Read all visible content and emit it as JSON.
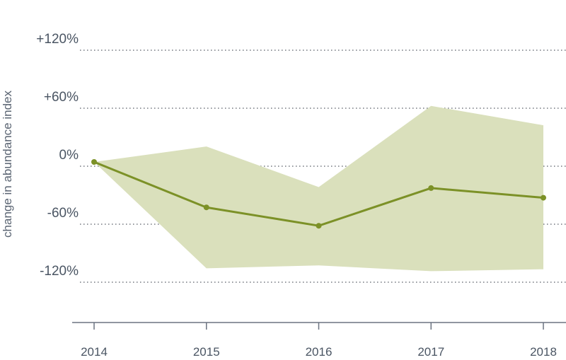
{
  "chart_data": {
    "type": "line",
    "title": "",
    "ylabel": "change in abundance index",
    "xlabel": "",
    "x": [
      "2014",
      "2015",
      "2016",
      "2017",
      "2018"
    ],
    "series": [
      {
        "values": [
          0,
          -47,
          -66,
          -27,
          -37
        ],
        "band_upper": [
          0,
          16,
          -26,
          58,
          38
        ],
        "band_lower": [
          0,
          -110,
          -107,
          -113,
          -111
        ]
      }
    ],
    "y_ticks": [
      120,
      60,
      0,
      -60,
      -120
    ],
    "y_tick_labels": [
      "+120%",
      "+60%",
      "0%",
      "-60%",
      "-120%"
    ],
    "ylim": [
      -165,
      130
    ],
    "grid": "horizontal-dotted",
    "colors": {
      "line": "#7c9127",
      "band": "#dae0bc",
      "axis": "#6b7380",
      "text": "#4a5563"
    }
  }
}
